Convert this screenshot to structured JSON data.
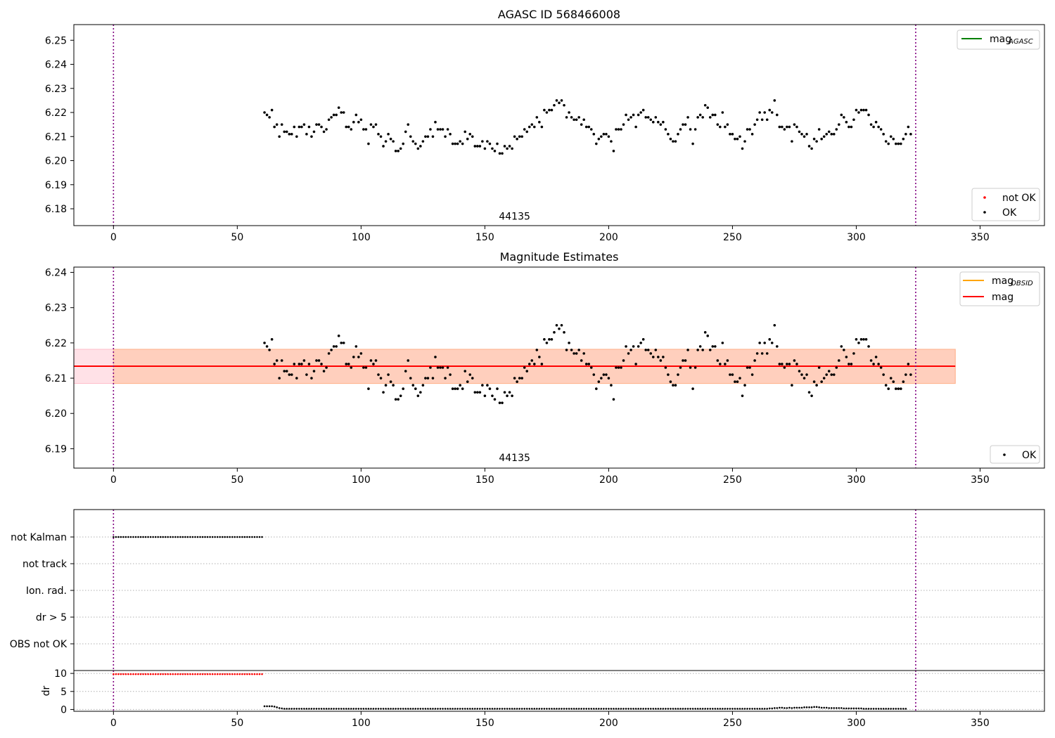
{
  "chart_data": [
    {
      "type": "scatter",
      "title": "AGASC ID 568466008",
      "xlim": [
        -16,
        376
      ],
      "ylim": [
        6.173,
        6.2565
      ],
      "xticks": [
        0,
        50,
        100,
        150,
        200,
        250,
        300,
        350
      ],
      "yticks": [
        6.18,
        6.19,
        6.2,
        6.21,
        6.22,
        6.23,
        6.24,
        6.25
      ],
      "ytick_decimals": 2,
      "vlines": [
        0,
        324
      ],
      "annotation": {
        "text": "44135",
        "x": 162,
        "y": 6.1755
      },
      "legend_lines": [
        {
          "label": "mag",
          "sub": "AGASC",
          "color": "#008000"
        }
      ],
      "legend_points": [
        {
          "label": "not OK",
          "color": "#ff0000"
        },
        {
          "label": "OK",
          "color": "#000000"
        }
      ],
      "series": [
        {
          "name": "OK",
          "color": "#000000",
          "x_start": 61,
          "x_step": 1,
          "values": [
            6.22,
            6.219,
            6.218,
            6.221,
            6.214,
            6.215,
            6.21,
            6.215,
            6.212,
            6.212,
            6.211,
            6.211,
            6.214,
            6.21,
            6.214,
            6.214,
            6.215,
            6.211,
            6.214,
            6.21,
            6.212,
            6.215,
            6.215,
            6.214,
            6.212,
            6.213,
            6.217,
            6.218,
            6.219,
            6.219,
            6.222,
            6.22,
            6.22,
            6.214,
            6.214,
            6.213,
            6.216,
            6.219,
            6.216,
            6.217,
            6.213,
            6.213,
            6.207,
            6.215,
            6.214,
            6.215,
            6.211,
            6.21,
            6.206,
            6.208,
            6.211,
            6.209,
            6.208,
            6.204,
            6.204,
            6.205,
            6.207,
            6.212,
            6.215,
            6.21,
            6.208,
            6.207,
            6.205,
            6.206,
            6.208,
            6.21,
            6.21,
            6.213,
            6.21,
            6.216,
            6.213,
            6.213,
            6.213,
            6.21,
            6.213,
            6.211,
            6.207,
            6.207,
            6.207,
            6.208,
            6.207,
            6.212,
            6.209,
            6.211,
            6.21,
            6.206,
            6.206,
            6.206,
            6.208,
            6.205,
            6.208,
            6.207,
            6.205,
            6.204,
            6.207,
            6.203,
            6.203,
            6.206,
            6.205,
            6.206,
            6.205,
            6.21,
            6.209,
            6.21,
            6.21,
            6.213,
            6.212,
            6.214,
            6.215,
            6.214,
            6.218,
            6.216,
            6.214,
            6.221,
            6.22,
            6.221,
            6.221,
            6.223,
            6.225,
            6.224,
            6.225,
            6.223,
            6.218,
            6.22,
            6.218,
            6.217,
            6.217,
            6.218,
            6.215,
            6.217,
            6.214,
            6.214,
            6.213,
            6.211,
            6.207,
            6.209,
            6.21,
            6.211,
            6.211,
            6.21,
            6.208,
            6.204,
            6.213,
            6.213,
            6.213,
            6.215,
            6.219,
            6.217,
            6.218,
            6.219,
            6.214,
            6.219,
            6.22,
            6.221,
            6.218,
            6.218,
            6.217,
            6.216,
            6.218,
            6.216,
            6.215,
            6.216,
            6.213,
            6.211,
            6.209,
            6.208,
            6.208,
            6.211,
            6.213,
            6.215,
            6.215,
            6.218,
            6.213,
            6.207,
            6.213,
            6.218,
            6.219,
            6.218,
            6.223,
            6.222,
            6.218,
            6.219,
            6.219,
            6.215,
            6.214,
            6.22,
            6.214,
            6.215,
            6.211,
            6.211,
            6.209,
            6.209,
            6.21,
            6.205,
            6.208,
            6.213,
            6.213,
            6.211,
            6.215,
            6.217,
            6.22,
            6.217,
            6.22,
            6.217,
            6.221,
            6.22,
            6.225,
            6.219,
            6.214,
            6.214,
            6.213,
            6.214,
            6.214,
            6.208,
            6.215,
            6.214,
            6.212,
            6.211,
            6.21,
            6.211,
            6.206,
            6.205,
            6.209,
            6.208,
            6.213,
            6.209,
            6.21,
            6.211,
            6.212,
            6.211,
            6.211,
            6.213,
            6.215,
            6.219,
            6.218,
            6.216,
            6.214,
            6.214,
            6.217,
            6.221,
            6.22,
            6.221,
            6.221,
            6.221,
            6.219,
            6.215,
            6.214,
            6.216,
            6.214,
            6.213,
            6.211,
            6.208,
            6.207,
            6.21,
            6.209,
            6.207,
            6.207,
            6.207,
            6.209,
            6.211,
            6.214,
            6.211
          ]
        }
      ]
    },
    {
      "type": "scatter",
      "title": "Magnitude Estimates",
      "xlim": [
        -16,
        376
      ],
      "ylim": [
        6.1845,
        6.2415
      ],
      "xticks": [
        0,
        50,
        100,
        150,
        200,
        250,
        300,
        350
      ],
      "yticks": [
        6.19,
        6.2,
        6.21,
        6.22,
        6.23,
        6.24
      ],
      "ytick_decimals": 2,
      "vlines": [
        0,
        324
      ],
      "annotation": {
        "text": "44135",
        "x": 162,
        "y": 6.1865
      },
      "bands": [
        {
          "x": [
            -16,
            340
          ],
          "y": [
            6.2085,
            6.2182
          ],
          "color": "#ff9db0",
          "opacity": 0.3
        },
        {
          "x": [
            0,
            340
          ],
          "y": [
            6.2085,
            6.2182
          ],
          "color": "#ffb070",
          "opacity": 0.35
        }
      ],
      "hlines": [
        {
          "y": 6.2134,
          "x": [
            -16,
            340
          ],
          "color": "#ff0000"
        }
      ],
      "legend_lines": [
        {
          "label": "mag",
          "sub": "OBSID",
          "color": "#ffa500"
        },
        {
          "label": "mag",
          "sub": "",
          "color": "#ff0000"
        }
      ],
      "legend_points": [
        {
          "label": "OK",
          "color": "#000000"
        }
      ],
      "series_ref": 0
    },
    {
      "type": "scatter",
      "title": "",
      "xlim": [
        -16,
        376
      ],
      "categories": [
        "not Kalman",
        "not track",
        "Ion. rad.",
        "dr > 5",
        "OBS not OK"
      ],
      "vlines": [
        0,
        324
      ],
      "flag_points": {
        "category": "not Kalman",
        "x_start": 0,
        "x_end": 60,
        "x_step": 1
      },
      "xticks": [
        0,
        50,
        100,
        150,
        200,
        250,
        300,
        350
      ]
    },
    {
      "type": "scatter",
      "ylabel": "dr",
      "xlim": [
        -16,
        376
      ],
      "ylim": [
        -0.5,
        10.8
      ],
      "yticks": [
        0,
        5,
        10
      ],
      "xticks": [
        0,
        50,
        100,
        150,
        200,
        250,
        300,
        350
      ],
      "vlines": [
        0,
        324
      ],
      "not_ok": {
        "x_start": 0,
        "x_end": 60,
        "x_step": 1,
        "value": 9.8,
        "color": "#ff0000"
      },
      "ok_values_start": 61,
      "ok_values": [
        0.9,
        0.9,
        0.9,
        0.9,
        0.8,
        0.6,
        0.4,
        0.3,
        0.2,
        0.2,
        0.2,
        0.2,
        0.2,
        0.2,
        0.2,
        0.2,
        0.2,
        0.2,
        0.2,
        0.2,
        0.2,
        0.2,
        0.2,
        0.2,
        0.2,
        0.2,
        0.2,
        0.2,
        0.2,
        0.2,
        0.2,
        0.2,
        0.2,
        0.2,
        0.2,
        0.2,
        0.2,
        0.2,
        0.2,
        0.2,
        0.2,
        0.2,
        0.2,
        0.2,
        0.2,
        0.2,
        0.2,
        0.2,
        0.2,
        0.2,
        0.2,
        0.2,
        0.2,
        0.2,
        0.2,
        0.2,
        0.2,
        0.2,
        0.2,
        0.2,
        0.2,
        0.2,
        0.2,
        0.2,
        0.2,
        0.2,
        0.2,
        0.2,
        0.2,
        0.2,
        0.2,
        0.2,
        0.2,
        0.2,
        0.2,
        0.2,
        0.2,
        0.2,
        0.2,
        0.2,
        0.2,
        0.2,
        0.2,
        0.2,
        0.2,
        0.2,
        0.2,
        0.2,
        0.2,
        0.2,
        0.2,
        0.2,
        0.2,
        0.2,
        0.2,
        0.2,
        0.2,
        0.2,
        0.2,
        0.2,
        0.2,
        0.2,
        0.2,
        0.2,
        0.2,
        0.2,
        0.2,
        0.2,
        0.2,
        0.2,
        0.2,
        0.2,
        0.2,
        0.2,
        0.2,
        0.2,
        0.2,
        0.2,
        0.2,
        0.2,
        0.2,
        0.2,
        0.2,
        0.2,
        0.2,
        0.2,
        0.2,
        0.2,
        0.2,
        0.2,
        0.2,
        0.2,
        0.2,
        0.2,
        0.2,
        0.2,
        0.2,
        0.2,
        0.2,
        0.2,
        0.2,
        0.2,
        0.2,
        0.2,
        0.2,
        0.2,
        0.2,
        0.2,
        0.2,
        0.2,
        0.2,
        0.2,
        0.2,
        0.2,
        0.2,
        0.2,
        0.2,
        0.2,
        0.2,
        0.2,
        0.2,
        0.2,
        0.2,
        0.2,
        0.2,
        0.2,
        0.2,
        0.2,
        0.2,
        0.2,
        0.2,
        0.2,
        0.2,
        0.2,
        0.2,
        0.2,
        0.2,
        0.2,
        0.2,
        0.2,
        0.2,
        0.2,
        0.2,
        0.2,
        0.2,
        0.2,
        0.2,
        0.2,
        0.2,
        0.2,
        0.2,
        0.2,
        0.2,
        0.2,
        0.2,
        0.2,
        0.2,
        0.2,
        0.2,
        0.2,
        0.2,
        0.2,
        0.2,
        0.2,
        0.3,
        0.3,
        0.4,
        0.4,
        0.5,
        0.5,
        0.4,
        0.4,
        0.5,
        0.4,
        0.5,
        0.5,
        0.5,
        0.5,
        0.6,
        0.6,
        0.6,
        0.6,
        0.7,
        0.7,
        0.6,
        0.5,
        0.5,
        0.5,
        0.4,
        0.4,
        0.4,
        0.4,
        0.4,
        0.4,
        0.3,
        0.3,
        0.3,
        0.3,
        0.3,
        0.3,
        0.3,
        0.3,
        0.2,
        0.2,
        0.2,
        0.2,
        0.2,
        0.2,
        0.2,
        0.2,
        0.2,
        0.2,
        0.2,
        0.2,
        0.2,
        0.2,
        0.2,
        0.2,
        0.2,
        0.2
      ]
    }
  ]
}
